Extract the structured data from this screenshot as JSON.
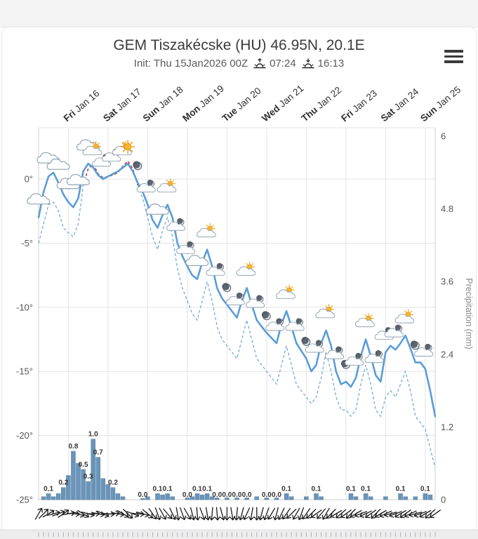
{
  "header": {
    "title": "GEM Tiszakécske (HU) 46.95N, 20.1E",
    "init_label": "Init: Thu 15Jan2026 00Z",
    "sunrise_time": "07:24",
    "sunset_time": "16:13"
  },
  "icons": {
    "menu": "hamburger-icon",
    "sunrise": "sunrise-icon",
    "sunset": "sunset-icon"
  },
  "chart_data": {
    "type": "line",
    "title": "GEM Tiszakécske (HU) 46.95N, 20.1E",
    "x_axis": {
      "step_hours": 3,
      "total_hours": 240
    },
    "days": [
      {
        "weekday": "Fri",
        "date": "Jan 16",
        "hour": 18
      },
      {
        "weekday": "Sat",
        "date": "Jan 17",
        "hour": 42
      },
      {
        "weekday": "Sun",
        "date": "Jan 18",
        "hour": 66
      },
      {
        "weekday": "Mon",
        "date": "Jan 19",
        "hour": 90
      },
      {
        "weekday": "Tue",
        "date": "Jan 20",
        "hour": 114
      },
      {
        "weekday": "Wed",
        "date": "Jan 21",
        "hour": 138
      },
      {
        "weekday": "Thu",
        "date": "Jan 22",
        "hour": 162
      },
      {
        "weekday": "Fri",
        "date": "Jan 23",
        "hour": 186
      },
      {
        "weekday": "Sat",
        "date": "Jan 24",
        "hour": 210
      },
      {
        "weekday": "Sun",
        "date": "Jan 25",
        "hour": 234
      }
    ],
    "temp_axis": {
      "min": -25,
      "max": 4,
      "ticks": [
        {
          "label": "0°",
          "value": 0
        },
        {
          "label": "-5°",
          "value": -5
        },
        {
          "label": "-10°",
          "value": -10
        },
        {
          "label": "-15°",
          "value": -15
        },
        {
          "label": "-20°",
          "value": -20
        },
        {
          "label": "-25°",
          "value": -25
        }
      ]
    },
    "precip_axis": {
      "title": "Precipitation (mm)",
      "min": 0,
      "max": 6,
      "ticks": [
        {
          "label": "6",
          "value": 6
        },
        {
          "label": "4.8",
          "value": 4.8
        },
        {
          "label": "3.6",
          "value": 3.6
        },
        {
          "label": "2.4",
          "value": 2.4
        },
        {
          "label": "1.2",
          "value": 1.2
        },
        {
          "label": "0",
          "value": 0
        }
      ]
    },
    "series": [
      {
        "name": "temperature",
        "style": "solid",
        "values": [
          -3,
          -1,
          0.2,
          0.5,
          -0.3,
          -1.2,
          -1.8,
          -2.2,
          -1.5,
          0.6,
          1.2,
          0.9,
          0.3,
          0,
          0.2,
          0.4,
          0.6,
          0.9,
          1.2,
          0.6,
          -0.3,
          -1,
          -2,
          -3.2,
          -3.8,
          -2.8,
          -2,
          -3,
          -5,
          -6,
          -6.8,
          -7.5,
          -7.8,
          -6.5,
          -5.5,
          -6.8,
          -8.5,
          -9.3,
          -9.8,
          -10.3,
          -10.8,
          -9.5,
          -8.5,
          -9.8,
          -11,
          -11.5,
          -12,
          -12.4,
          -12.8,
          -11.3,
          -10.3,
          -11.5,
          -12.8,
          -13.4,
          -14,
          -15,
          -14.5,
          -12.8,
          -11.8,
          -13,
          -15,
          -16,
          -15.8,
          -16.2,
          -15.5,
          -13.8,
          -12.5,
          -13.8,
          -15.3,
          -15.8,
          -13.5,
          -13,
          -13.3,
          -12.8,
          -12.2,
          -13.2,
          -14.3,
          -14.3,
          -14.8,
          -16.5,
          -18.5
        ]
      },
      {
        "name": "temperature-dashed",
        "style": "dashed",
        "values": [
          -5,
          -3.5,
          -2,
          -1.8,
          -2.5,
          -3.8,
          -4.2,
          -4.5,
          -3.5,
          -0.5,
          0.8,
          1.2,
          0.4,
          0.1,
          0.2,
          0.3,
          0.5,
          1,
          1.4,
          0.8,
          -0.5,
          -1.5,
          -3,
          -4.5,
          -5.5,
          -4,
          -3,
          -4.5,
          -7,
          -8.5,
          -9.5,
          -10.5,
          -11,
          -9.5,
          -8,
          -9.5,
          -11.5,
          -12.5,
          -13,
          -13.5,
          -14,
          -12.5,
          -11,
          -12.5,
          -14,
          -14.5,
          -15,
          -15.5,
          -16,
          -14.5,
          -13,
          -14.5,
          -16,
          -16.5,
          -17,
          -17.5,
          -17,
          -15.5,
          -13.5,
          -15,
          -17,
          -18,
          -18,
          -18.5,
          -18,
          -16,
          -14.5,
          -16,
          -18,
          -18.5,
          -17,
          -16.5,
          -17,
          -16,
          -15,
          -16.5,
          -18.5,
          -19,
          -19.5,
          -21,
          -22.5
        ]
      }
    ],
    "precipitation": {
      "bars": [
        [
          3,
          0.05
        ],
        [
          6,
          0.1
        ],
        [
          9,
          0.05
        ],
        [
          12,
          0.1
        ],
        [
          15,
          0.2
        ],
        [
          18,
          0.4
        ],
        [
          21,
          0.8
        ],
        [
          24,
          0.6
        ],
        [
          27,
          0.5
        ],
        [
          30,
          0.3
        ],
        [
          33,
          1.0
        ],
        [
          36,
          0.7
        ],
        [
          39,
          0.35
        ],
        [
          42,
          0.25
        ],
        [
          45,
          0.2
        ],
        [
          48,
          0.1
        ],
        [
          51,
          0.05
        ],
        [
          63,
          0.02
        ],
        [
          66,
          0.05
        ],
        [
          72,
          0.1
        ],
        [
          75,
          0.08
        ],
        [
          78,
          0.1
        ],
        [
          81,
          0.05
        ],
        [
          90,
          0.03
        ],
        [
          93,
          0.05
        ],
        [
          96,
          0.1
        ],
        [
          99,
          0.08
        ],
        [
          102,
          0.1
        ],
        [
          105,
          0.05
        ],
        [
          108,
          0.03
        ],
        [
          114,
          0.03
        ],
        [
          120,
          0.03
        ],
        [
          126,
          0.03
        ],
        [
          132,
          0.05
        ],
        [
          138,
          0.03
        ],
        [
          144,
          0.03
        ],
        [
          150,
          0.1
        ],
        [
          153,
          0.05
        ],
        [
          162,
          0.05
        ],
        [
          168,
          0.1
        ],
        [
          171,
          0.05
        ],
        [
          189,
          0.1
        ],
        [
          192,
          0.05
        ],
        [
          198,
          0.1
        ],
        [
          201,
          0.05
        ],
        [
          210,
          0.05
        ],
        [
          219,
          0.1
        ],
        [
          222,
          0.05
        ],
        [
          228,
          0.05
        ],
        [
          234,
          0.1
        ],
        [
          237,
          0.08
        ]
      ],
      "labels": [
        [
          6,
          "0.1"
        ],
        [
          15,
          "0.2"
        ],
        [
          21,
          "0.8"
        ],
        [
          27,
          "0.5"
        ],
        [
          30,
          "0.3"
        ],
        [
          33,
          "1.0"
        ],
        [
          36,
          "0.7"
        ],
        [
          45,
          "0.2"
        ],
        [
          63,
          "0.0"
        ],
        [
          72,
          "0.1"
        ],
        [
          78,
          "0.1"
        ],
        [
          90,
          "0.0"
        ],
        [
          96,
          "0.1"
        ],
        [
          102,
          "0.1"
        ],
        [
          108,
          "0.0"
        ],
        [
          114,
          "0.0"
        ],
        [
          120,
          "0.0"
        ],
        [
          126,
          "0.0"
        ],
        [
          138,
          "0.0"
        ],
        [
          144,
          "0.0"
        ],
        [
          150,
          "0.1"
        ],
        [
          168,
          "0.1"
        ],
        [
          189,
          "0.1"
        ],
        [
          198,
          "0.1"
        ],
        [
          219,
          "0.1"
        ],
        [
          234,
          "0.1"
        ]
      ]
    },
    "weather_icons": [
      [
        0,
        "cloud"
      ],
      [
        6,
        "cloud"
      ],
      [
        12,
        "cloud"
      ],
      [
        18,
        "cloud"
      ],
      [
        24,
        "cloud"
      ],
      [
        30,
        "cloud"
      ],
      [
        33,
        "sun-cloud"
      ],
      [
        39,
        "moon-cloud"
      ],
      [
        45,
        "moon-cloud"
      ],
      [
        51,
        "sun-cloud"
      ],
      [
        54,
        "sun"
      ],
      [
        60,
        "moon"
      ],
      [
        66,
        "moon-cloud"
      ],
      [
        72,
        "cloud"
      ],
      [
        78,
        "sun-cloud"
      ],
      [
        84,
        "moon-cloud"
      ],
      [
        90,
        "moon-cloud"
      ],
      [
        96,
        "cloud"
      ],
      [
        102,
        "sun-cloud"
      ],
      [
        108,
        "moon-cloud"
      ],
      [
        114,
        "moon"
      ],
      [
        120,
        "moon-cloud"
      ],
      [
        126,
        "sun-cloud"
      ],
      [
        132,
        "moon-cloud"
      ],
      [
        138,
        "moon"
      ],
      [
        144,
        "moon-cloud"
      ],
      [
        150,
        "sun-cloud"
      ],
      [
        156,
        "moon-cloud"
      ],
      [
        162,
        "moon"
      ],
      [
        168,
        "moon-cloud"
      ],
      [
        174,
        "sun-cloud"
      ],
      [
        180,
        "moon-cloud"
      ],
      [
        186,
        "moon"
      ],
      [
        192,
        "moon-cloud"
      ],
      [
        198,
        "sun-cloud"
      ],
      [
        204,
        "moon-cloud"
      ],
      [
        210,
        "moon-cloud"
      ],
      [
        216,
        "moon-cloud"
      ],
      [
        222,
        "sun-cloud"
      ],
      [
        228,
        "moon"
      ],
      [
        234,
        "moon-cloud"
      ]
    ],
    "wind_arrows": {
      "step_hours": 3,
      "directions_deg": [
        30,
        45,
        60,
        75,
        70,
        55,
        80,
        95,
        110,
        120,
        105,
        90,
        100,
        115,
        95,
        85,
        100,
        120,
        135,
        110,
        95,
        105,
        130,
        145,
        160,
        150,
        140,
        155,
        170,
        160,
        150,
        165,
        175,
        160,
        170,
        185,
        175,
        165,
        180,
        170,
        185,
        195,
        205,
        190,
        180,
        195,
        200,
        210,
        195,
        205,
        215,
        225,
        210,
        200,
        215,
        225,
        235,
        220,
        210,
        225,
        240,
        230,
        235,
        225,
        240,
        250,
        245,
        235,
        225,
        240,
        245,
        255,
        250,
        240,
        235,
        245,
        255,
        250,
        240,
        230,
        235
      ]
    },
    "colors": {
      "line": "#5b9dd6",
      "dashed_above": "#c23c3c",
      "bar": "#6a94ba",
      "bar_edge": "#567d9e",
      "grid": "#e3e3e3",
      "axis": "#cfcfcf"
    }
  }
}
